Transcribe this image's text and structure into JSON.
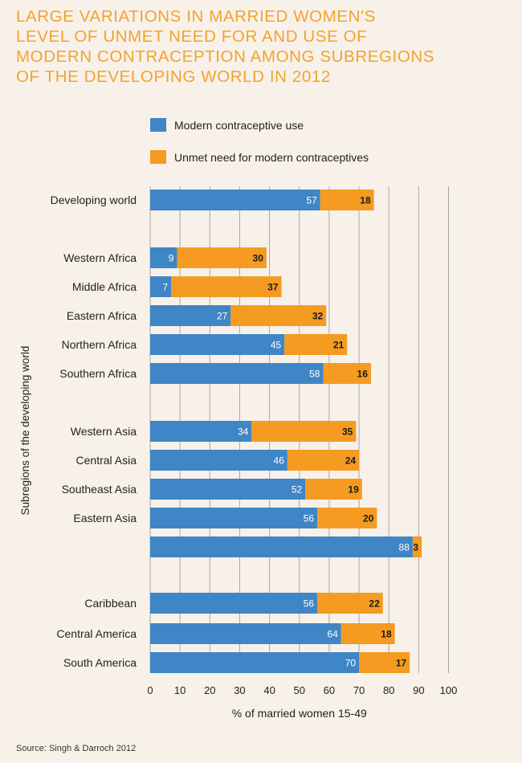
{
  "title_lines": [
    "LARGE VARIATIONS IN MARRIED WOMEN'S",
    "LEVEL OF UNMET NEED FOR AND USE OF",
    "MODERN CONTRACEPTION AMONG SUBREGIONS",
    "OF THE DEVELOPING WORLD IN 2012"
  ],
  "source": "Source: Singh & Darroch 2012",
  "chart_data": {
    "type": "bar",
    "orientation": "horizontal",
    "stacked": true,
    "categories": [
      "Developing world",
      "Western Africa",
      "Middle Africa",
      "Eastern Africa",
      "Northern Africa",
      "Southern Africa",
      "Western Asia",
      "Central Asia",
      "Southeast Asia",
      "Eastern Asia",
      "",
      "Caribbean",
      "Central America",
      "South America"
    ],
    "series": [
      {
        "name": "Modern contraceptive use",
        "color": "#3f86c6",
        "values": [
          57,
          9,
          7,
          27,
          45,
          58,
          34,
          46,
          52,
          56,
          88,
          56,
          64,
          70
        ]
      },
      {
        "name": "Unmet need for modern contraceptives",
        "color": "#f59b22",
        "values": [
          18,
          30,
          37,
          32,
          21,
          16,
          35,
          24,
          19,
          20,
          3,
          22,
          18,
          17
        ]
      }
    ],
    "xlabel": "% of married women 15-49",
    "ylabel": "Subregions of the developing world",
    "xlim": [
      0,
      100
    ],
    "xticks": [
      0,
      10,
      20,
      30,
      40,
      50,
      60,
      70,
      80,
      90,
      100
    ],
    "grid": true,
    "legend_position": "top"
  }
}
